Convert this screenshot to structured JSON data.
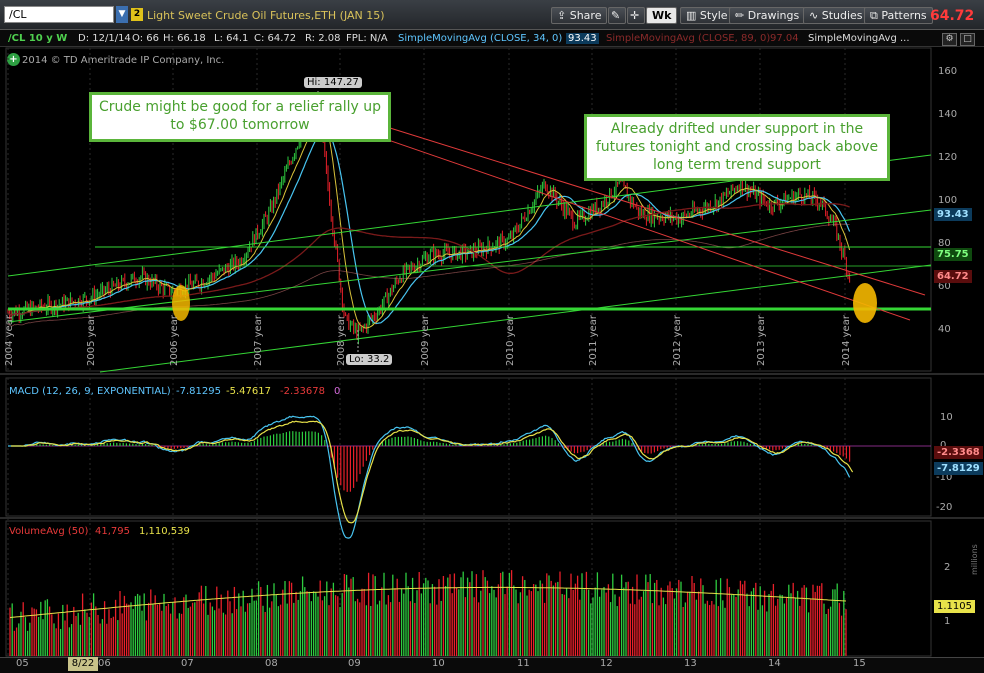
{
  "toolbar": {
    "symbol": "/CL",
    "link_number": "2",
    "description": "Light Sweet Crude Oil Futures,ETH (JAN 15)",
    "share_label": "Share",
    "wk_label": "Wk",
    "style_label": "Style",
    "drawings_label": "Drawings",
    "studies_label": "Studies",
    "patterns_label": "Patterns",
    "last_price": "64.72"
  },
  "header": {
    "period": "/CL 10 y W",
    "date": "D: 12/1/14",
    "open": "O: 66",
    "high": "H: 66.18",
    "low": "L: 64.1",
    "close": "C: 64.72",
    "range": "R: 2.08",
    "fpl": "FPL: N/A",
    "sma1_label": "SimpleMovingAvg (CLOSE, 34, 0)",
    "sma1_value": "93.43",
    "sma2_label": "SimpleMovingAvg (CLOSE, 89, 0)",
    "sma2_value": "97.04",
    "sma3_label": "SimpleMovingAvg ..."
  },
  "copyright": "2014 © TD Ameritrade IP Company, Inc.",
  "annotations": {
    "left": "Crude might be good for a relief rally up to $67.00 tomorrow",
    "right": "Already drifted under support in the futures tonight and crossing back above long term trend support"
  },
  "price_panel": {
    "hi_label": "Hi: 147.27",
    "lo_label": "Lo: 33.2",
    "yaxis_ticks": [
      "160",
      "140",
      "120",
      "100",
      "80",
      "60",
      "40"
    ],
    "year_labels": [
      "2004 year",
      "2005 year",
      "2006 year",
      "2007 year",
      "2008 year",
      "2009 year",
      "2010 year",
      "2011 year",
      "2012 year",
      "2013 year",
      "2014 year"
    ],
    "tag_sma1": "93.43",
    "tag_support": "75.75",
    "tag_last": "64.72"
  },
  "macd_panel": {
    "title": "MACD (12, 26, 9, EXPONENTIAL)",
    "v1": "-7.81295",
    "v2": "-5.47617",
    "v3": "-2.33678",
    "v4": "0",
    "yaxis_ticks": [
      "10",
      "0",
      "-10",
      "-20"
    ],
    "tag_diff": "-2.3368",
    "tag_value": "-7.8129"
  },
  "volume_panel": {
    "title": "VolumeAvg (50)",
    "v1": "41,795",
    "v2": "1,110,539",
    "yaxis_ticks": [
      "2",
      "1"
    ],
    "tag": "1.1105",
    "axis_unit": "millions"
  },
  "xaxis": {
    "labels": [
      "05",
      "06",
      "07",
      "08",
      "09",
      "10",
      "11",
      "12",
      "13",
      "14",
      "15"
    ],
    "cursor_label": "8/22"
  },
  "colors": {
    "up": "#2ecc40",
    "down": "#e8202a",
    "green_line": "#35d635",
    "red_line": "#e03a3a",
    "annotation_border": "#5bb53b",
    "highlight": "#f5b800"
  }
}
